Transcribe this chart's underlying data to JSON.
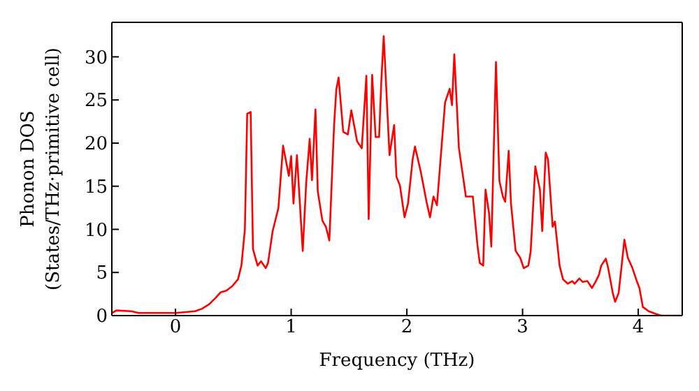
{
  "chart_data": {
    "type": "line",
    "xlabel": "Frequency (THz)",
    "ylabel": "Phonon DOS\n(States/THz·primitive cell)",
    "xlim": [
      -0.55,
      4.38
    ],
    "ylim": [
      0,
      34
    ],
    "xticks": [
      0,
      1,
      2,
      3,
      4
    ],
    "yticks": [
      0,
      5,
      10,
      15,
      20,
      25,
      30
    ],
    "grid": false,
    "legend": false,
    "marker": "none",
    "line_style": "solid",
    "x": [
      -0.55,
      -0.51,
      -0.38,
      -0.32,
      0,
      0.17,
      0.23,
      0.29,
      0.35,
      0.39,
      0.44,
      0.49,
      0.54,
      0.57,
      0.6,
      0.62,
      0.65,
      0.67,
      0.71,
      0.74,
      0.78,
      0.8,
      0.84,
      0.89,
      0.93,
      0.98,
      1.0,
      1.02,
      1.05,
      1.1,
      1.13,
      1.16,
      1.18,
      1.21,
      1.23,
      1.27,
      1.3,
      1.33,
      1.37,
      1.39,
      1.41,
      1.45,
      1.49,
      1.52,
      1.57,
      1.61,
      1.65,
      1.67,
      1.7,
      1.73,
      1.76,
      1.78,
      1.8,
      1.85,
      1.89,
      1.91,
      1.94,
      1.98,
      2.01,
      2.05,
      2.07,
      2.12,
      2.17,
      2.2,
      2.23,
      2.26,
      2.3,
      2.33,
      2.37,
      2.39,
      2.41,
      2.45,
      2.49,
      2.51,
      2.55,
      2.57,
      2.61,
      2.63,
      2.66,
      2.68,
      2.71,
      2.73,
      2.77,
      2.8,
      2.83,
      2.85,
      2.88,
      2.9,
      2.94,
      2.98,
      3.01,
      3.05,
      3.07,
      3.11,
      3.15,
      3.17,
      3.2,
      3.22,
      3.26,
      3.28,
      3.32,
      3.35,
      3.39,
      3.43,
      3.45,
      3.49,
      3.52,
      3.56,
      3.6,
      3.63,
      3.66,
      3.68,
      3.72,
      3.74,
      3.78,
      3.8,
      3.83,
      3.85,
      3.88,
      3.91,
      3.95,
      3.99,
      4.01,
      4.04,
      4.09,
      4.15,
      4.2,
      4.38
    ],
    "series": [
      {
        "color": "#ff0000",
        "values": [
          0.3,
          0.6,
          0.5,
          0.3,
          0.3,
          0.5,
          0.8,
          1.3,
          2.1,
          2.7,
          2.9,
          3.4,
          4.2,
          5.8,
          10,
          23.4,
          23.6,
          7.7,
          5.8,
          6.3,
          5.5,
          6.1,
          9.8,
          12.5,
          19.7,
          16.2,
          18.5,
          13,
          18.6,
          7.5,
          15.4,
          20.5,
          15.7,
          23.9,
          14.4,
          11,
          10.3,
          8.7,
          21.8,
          26.2,
          27.6,
          21.3,
          21,
          23.8,
          20.2,
          19.4,
          27.8,
          11.2,
          27.9,
          20.7,
          20.7,
          27.4,
          32.4,
          18.6,
          22.1,
          16.1,
          15.1,
          11.4,
          13,
          18.1,
          19.6,
          16.7,
          13.2,
          11.4,
          13.8,
          12.8,
          19.6,
          24.7,
          26.3,
          24.4,
          30.3,
          19.4,
          15.7,
          13.8,
          13.8,
          13.8,
          8.2,
          6.1,
          5.8,
          14.6,
          11.9,
          8,
          29.4,
          15.6,
          13.8,
          13.2,
          19.1,
          13,
          7.5,
          6.7,
          5.5,
          5.8,
          7.4,
          17.3,
          14.6,
          9.8,
          18.9,
          18.1,
          10.3,
          10.9,
          5.8,
          4.2,
          3.7,
          4,
          3.7,
          4.3,
          3.9,
          4,
          3.2,
          3.9,
          4.7,
          5.8,
          6.6,
          5.5,
          2.6,
          1.6,
          2.6,
          5,
          8.8,
          6.7,
          5.5,
          3.9,
          3.2,
          1,
          0.5,
          0.2,
          0,
          0
        ]
      }
    ]
  }
}
